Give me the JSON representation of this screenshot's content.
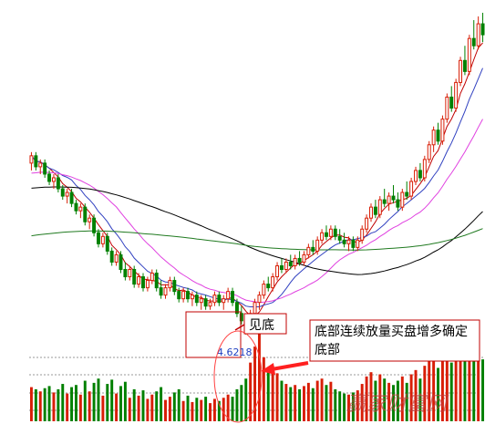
{
  "chart_data": {
    "type": "candlestick",
    "title": "",
    "xlabel": "",
    "ylabel": "",
    "grid": true,
    "low_label": "4.6218",
    "annotations": {
      "bottom_label": "见底",
      "volume_note": "底部连续放量买盘增多确定底部"
    },
    "watermark": "赢家财富网",
    "colors": {
      "up": "#d81e06",
      "down": "#008000",
      "ma5": "#c00000",
      "ma10": "#3040c0",
      "ma20": "#e040e0",
      "ma60": "#000000",
      "ma120": "#207a20",
      "note_arrow": "#ff2020"
    },
    "price_range": [
      4.0,
      13.5
    ],
    "volume_range": [
      0,
      100
    ],
    "candles": [
      [
        9.3,
        9.6,
        9.1,
        9.5,
        32
      ],
      [
        9.5,
        9.6,
        9.1,
        9.2,
        30
      ],
      [
        9.2,
        9.4,
        9.0,
        9.3,
        28
      ],
      [
        9.3,
        9.4,
        8.9,
        9.0,
        31
      ],
      [
        9.0,
        9.1,
        8.7,
        8.8,
        33
      ],
      [
        8.8,
        9.0,
        8.6,
        8.9,
        27
      ],
      [
        8.9,
        9.0,
        8.5,
        8.6,
        30
      ],
      [
        8.6,
        8.7,
        8.3,
        8.4,
        35
      ],
      [
        8.4,
        8.6,
        8.2,
        8.5,
        26
      ],
      [
        8.5,
        8.6,
        8.1,
        8.2,
        32
      ],
      [
        8.2,
        8.3,
        7.9,
        8.0,
        34
      ],
      [
        8.0,
        8.2,
        7.8,
        8.1,
        25
      ],
      [
        8.1,
        8.2,
        7.6,
        7.7,
        38
      ],
      [
        7.7,
        7.9,
        7.5,
        7.8,
        28
      ],
      [
        7.8,
        7.9,
        7.3,
        7.4,
        36
      ],
      [
        7.4,
        7.5,
        7.0,
        7.1,
        40
      ],
      [
        7.1,
        7.4,
        7.0,
        7.3,
        24
      ],
      [
        7.3,
        7.4,
        6.8,
        6.9,
        35
      ],
      [
        6.9,
        7.0,
        6.5,
        6.6,
        39
      ],
      [
        6.6,
        6.9,
        6.5,
        6.8,
        26
      ],
      [
        6.8,
        6.9,
        6.3,
        6.4,
        33
      ],
      [
        6.4,
        6.6,
        6.1,
        6.2,
        37
      ],
      [
        6.2,
        6.5,
        6.1,
        6.4,
        22
      ],
      [
        6.4,
        6.5,
        5.9,
        6.0,
        30
      ],
      [
        6.0,
        6.3,
        5.9,
        6.2,
        24
      ],
      [
        6.2,
        6.3,
        5.8,
        5.9,
        29
      ],
      [
        5.9,
        6.2,
        5.8,
        6.1,
        21
      ],
      [
        6.1,
        6.4,
        6.0,
        6.3,
        25
      ],
      [
        6.3,
        6.4,
        5.8,
        5.9,
        28
      ],
      [
        5.9,
        6.1,
        5.6,
        5.7,
        32
      ],
      [
        5.7,
        6.0,
        5.6,
        5.9,
        20
      ],
      [
        5.9,
        6.2,
        5.8,
        6.1,
        23
      ],
      [
        6.1,
        6.2,
        5.7,
        5.8,
        27
      ],
      [
        5.8,
        5.9,
        5.5,
        5.6,
        30
      ],
      [
        5.6,
        5.9,
        5.5,
        5.8,
        19
      ],
      [
        5.8,
        5.9,
        5.5,
        5.6,
        24
      ],
      [
        5.6,
        5.8,
        5.4,
        5.7,
        18
      ],
      [
        5.7,
        5.8,
        5.4,
        5.5,
        22
      ],
      [
        5.5,
        5.7,
        5.3,
        5.6,
        20
      ],
      [
        5.6,
        5.7,
        5.3,
        5.4,
        23
      ],
      [
        5.4,
        5.6,
        5.3,
        5.5,
        17
      ],
      [
        5.5,
        5.8,
        5.4,
        5.7,
        21
      ],
      [
        5.7,
        5.8,
        5.4,
        5.5,
        19
      ],
      [
        5.5,
        5.7,
        5.3,
        5.6,
        22
      ],
      [
        5.6,
        5.9,
        5.5,
        5.8,
        25
      ],
      [
        5.8,
        5.9,
        5.4,
        5.5,
        23
      ],
      [
        5.5,
        5.6,
        5.1,
        5.2,
        30
      ],
      [
        5.2,
        5.4,
        4.9,
        5.0,
        34
      ],
      [
        5.0,
        5.1,
        4.62,
        4.8,
        40
      ],
      [
        4.8,
        5.3,
        4.7,
        5.2,
        55
      ],
      [
        5.2,
        5.6,
        5.1,
        5.5,
        70
      ],
      [
        5.5,
        5.8,
        5.3,
        5.7,
        92
      ],
      [
        5.7,
        6.1,
        5.6,
        6.0,
        60
      ],
      [
        6.0,
        6.2,
        5.8,
        5.9,
        48
      ],
      [
        5.9,
        6.3,
        5.8,
        6.2,
        52
      ],
      [
        6.2,
        6.6,
        6.1,
        6.5,
        45
      ],
      [
        6.5,
        6.7,
        6.3,
        6.4,
        38
      ],
      [
        6.4,
        6.7,
        6.3,
        6.6,
        35
      ],
      [
        6.6,
        6.8,
        6.4,
        6.5,
        32
      ],
      [
        6.5,
        6.8,
        6.4,
        6.7,
        34
      ],
      [
        6.7,
        6.9,
        6.5,
        6.6,
        30
      ],
      [
        6.6,
        6.9,
        6.5,
        6.8,
        33
      ],
      [
        6.8,
        7.1,
        6.7,
        7.0,
        36
      ],
      [
        7.0,
        7.2,
        6.8,
        6.9,
        31
      ],
      [
        6.9,
        7.3,
        6.8,
        7.2,
        38
      ],
      [
        7.2,
        7.5,
        7.1,
        7.4,
        40
      ],
      [
        7.4,
        7.6,
        7.2,
        7.3,
        34
      ],
      [
        7.3,
        7.6,
        7.2,
        7.5,
        37
      ],
      [
        7.5,
        7.6,
        7.2,
        7.3,
        30
      ],
      [
        7.3,
        7.5,
        7.1,
        7.2,
        28
      ],
      [
        7.2,
        7.4,
        7.0,
        7.1,
        26
      ],
      [
        7.1,
        7.3,
        6.9,
        7.2,
        25
      ],
      [
        7.2,
        7.3,
        6.9,
        7.0,
        27
      ],
      [
        7.0,
        7.3,
        6.9,
        7.2,
        29
      ],
      [
        7.2,
        7.6,
        7.1,
        7.5,
        35
      ],
      [
        7.5,
        7.9,
        7.4,
        7.8,
        42
      ],
      [
        7.8,
        8.2,
        7.7,
        8.1,
        46
      ],
      [
        8.1,
        8.3,
        7.8,
        7.9,
        38
      ],
      [
        7.9,
        8.4,
        7.8,
        8.3,
        44
      ],
      [
        8.3,
        8.6,
        8.1,
        8.2,
        40
      ],
      [
        8.2,
        8.5,
        8.0,
        8.4,
        36
      ],
      [
        8.4,
        8.7,
        8.2,
        8.3,
        34
      ],
      [
        8.3,
        8.5,
        8.0,
        8.1,
        38
      ],
      [
        8.1,
        8.6,
        8.0,
        8.5,
        42
      ],
      [
        8.5,
        8.8,
        8.3,
        8.4,
        36
      ],
      [
        8.4,
        8.9,
        8.3,
        8.8,
        44
      ],
      [
        8.8,
        9.2,
        8.7,
        9.1,
        48
      ],
      [
        9.1,
        9.3,
        8.8,
        8.9,
        40
      ],
      [
        8.9,
        9.5,
        8.8,
        9.4,
        52
      ],
      [
        9.4,
        9.9,
        9.3,
        9.8,
        58
      ],
      [
        9.8,
        10.3,
        9.6,
        10.2,
        62
      ],
      [
        10.2,
        10.4,
        9.8,
        9.9,
        50
      ],
      [
        9.9,
        10.6,
        9.8,
        10.5,
        60
      ],
      [
        10.5,
        11.2,
        10.4,
        11.1,
        66
      ],
      [
        11.1,
        11.4,
        10.7,
        10.8,
        55
      ],
      [
        10.8,
        11.6,
        10.7,
        11.5,
        68
      ],
      [
        11.5,
        12.2,
        11.4,
        12.1,
        72
      ],
      [
        12.1,
        12.5,
        11.7,
        11.8,
        60
      ],
      [
        11.8,
        12.8,
        11.7,
        12.7,
        70
      ],
      [
        12.7,
        13.2,
        12.4,
        12.5,
        64
      ],
      [
        12.5,
        13.3,
        12.4,
        13.1,
        66
      ],
      [
        13.1,
        13.4,
        12.6,
        12.8,
        58
      ]
    ]
  }
}
